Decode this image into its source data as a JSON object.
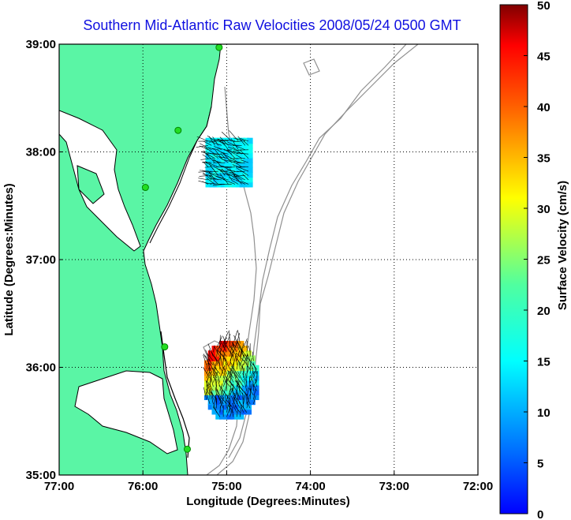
{
  "title": "Southern Mid-Atlantic Raw Velocities 2008/05/24 0500 GMT",
  "map": {
    "xlabel": "Longitude (Degrees:Minutes)",
    "ylabel": "Latitude (Degrees:Minutes)",
    "lon_range": [
      -77.0,
      -72.0
    ],
    "lat_range": [
      35.0,
      39.0
    ],
    "x_ticks": [
      {
        "lon": -77,
        "label": "77:00"
      },
      {
        "lon": -76,
        "label": "76:00"
      },
      {
        "lon": -75,
        "label": "75:00"
      },
      {
        "lon": -74,
        "label": "74:00"
      },
      {
        "lon": -73,
        "label": "73:00"
      },
      {
        "lon": -72,
        "label": "72:00"
      }
    ],
    "y_ticks": [
      {
        "lat": 35,
        "label": "35:00"
      },
      {
        "lat": 36,
        "label": "36:00"
      },
      {
        "lat": 37,
        "label": "37:00"
      },
      {
        "lat": 38,
        "label": "38:00"
      },
      {
        "lat": 39,
        "label": "39:00"
      }
    ],
    "grid": "dotted",
    "land_color": "#5af5a5",
    "coast_color": "#000000",
    "bathymetry_color": "#909090",
    "station_color": "#22dd22",
    "stations": [
      {
        "lon": -75.09,
        "lat": 38.97
      },
      {
        "lon": -75.58,
        "lat": 38.2
      },
      {
        "lon": -75.97,
        "lat": 37.67
      },
      {
        "lon": -75.74,
        "lat": 36.19
      },
      {
        "lon": -75.47,
        "lat": 35.24
      }
    ],
    "regions": [
      {
        "name": "north",
        "lon_range": [
          -75.22,
          -74.72
        ],
        "lat_range": [
          37.7,
          38.12
        ],
        "base_speed": 18
      },
      {
        "name": "south",
        "lon_range": [
          -75.28,
          -74.62
        ],
        "lat_range": [
          35.5,
          36.25
        ],
        "base_speed": 30
      }
    ]
  },
  "colorbar": {
    "label": "Surface Velocity (cm/s)",
    "min": 0,
    "max": 50,
    "ticks": [
      "0",
      "5",
      "10",
      "15",
      "20",
      "25",
      "30",
      "35",
      "40",
      "45",
      "50"
    ],
    "colormap": "jet"
  }
}
